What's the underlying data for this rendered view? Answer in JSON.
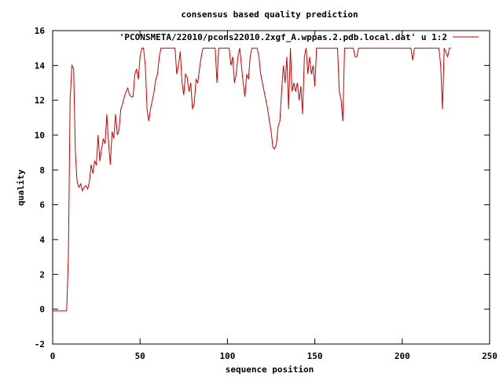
{
  "chart_data": {
    "type": "line",
    "title": "consensus based quality prediction",
    "xlabel": "sequence position",
    "ylabel": "quality",
    "xlim": [
      0,
      250
    ],
    "ylim": [
      -2,
      16
    ],
    "x_ticks": [
      0,
      50,
      100,
      150,
      200,
      250
    ],
    "y_ticks": [
      -2,
      0,
      2,
      4,
      6,
      8,
      10,
      12,
      14,
      16
    ],
    "x_tick_labels": [
      "0",
      "50",
      "100",
      "150",
      "200",
      "250"
    ],
    "y_tick_labels": [
      "-2",
      "0",
      "2",
      "4",
      "6",
      "8",
      "10",
      "12",
      "14",
      "16"
    ],
    "grid": false,
    "legend_position": "top-right",
    "line_color": "#cc0000",
    "series": [
      {
        "name": "'PCONSMETA/22010/pcons22010.2xgf_A.wppas.2.pdb.local.dat' u 1:2",
        "color": "#cc0000",
        "points": [
          [
            0,
            -0.1
          ],
          [
            8,
            -0.1
          ],
          [
            9,
            3.0
          ],
          [
            10,
            12.0
          ],
          [
            11,
            14.0
          ],
          [
            12,
            13.8
          ],
          [
            13,
            9.0
          ],
          [
            14,
            7.3
          ],
          [
            15,
            7.0
          ],
          [
            16,
            7.2
          ],
          [
            17,
            6.8
          ],
          [
            18,
            7.0
          ],
          [
            19,
            7.1
          ],
          [
            20,
            6.9
          ],
          [
            21,
            7.3
          ],
          [
            22,
            8.3
          ],
          [
            23,
            7.8
          ],
          [
            24,
            8.5
          ],
          [
            25,
            8.3
          ],
          [
            26,
            10.0
          ],
          [
            27,
            8.5
          ],
          [
            28,
            9.2
          ],
          [
            29,
            9.8
          ],
          [
            30,
            9.5
          ],
          [
            31,
            11.2
          ],
          [
            32,
            9.5
          ],
          [
            33,
            8.3
          ],
          [
            34,
            10.2
          ],
          [
            35,
            9.8
          ],
          [
            36,
            11.2
          ],
          [
            37,
            10.0
          ],
          [
            38,
            10.3
          ],
          [
            39,
            11.5
          ],
          [
            40,
            11.8
          ],
          [
            41,
            12.2
          ],
          [
            42,
            12.5
          ],
          [
            43,
            12.7
          ],
          [
            44,
            12.3
          ],
          [
            45,
            12.2
          ],
          [
            46,
            12.2
          ],
          [
            47,
            13.5
          ],
          [
            48,
            13.8
          ],
          [
            49,
            13.2
          ],
          [
            50,
            14.5
          ],
          [
            51,
            15.0
          ],
          [
            52,
            15.0
          ],
          [
            53,
            14.0
          ],
          [
            54,
            11.5
          ],
          [
            55,
            10.8
          ],
          [
            56,
            11.5
          ],
          [
            57,
            12.0
          ],
          [
            58,
            12.5
          ],
          [
            59,
            13.2
          ],
          [
            60,
            13.5
          ],
          [
            61,
            14.5
          ],
          [
            62,
            15.0
          ],
          [
            70,
            15.0
          ],
          [
            71,
            13.5
          ],
          [
            72,
            14.0
          ],
          [
            73,
            14.8
          ],
          [
            74,
            13.0
          ],
          [
            75,
            12.3
          ],
          [
            76,
            13.5
          ],
          [
            77,
            13.3
          ],
          [
            78,
            12.5
          ],
          [
            79,
            13.0
          ],
          [
            80,
            11.5
          ],
          [
            81,
            11.8
          ],
          [
            82,
            13.2
          ],
          [
            83,
            13.0
          ],
          [
            84,
            13.8
          ],
          [
            85,
            14.5
          ],
          [
            86,
            15.0
          ],
          [
            93,
            15.0
          ],
          [
            94,
            13.0
          ],
          [
            95,
            15.0
          ],
          [
            101,
            15.0
          ],
          [
            102,
            14.0
          ],
          [
            103,
            14.5
          ],
          [
            104,
            13.0
          ],
          [
            105,
            13.5
          ],
          [
            106,
            14.5
          ],
          [
            107,
            15.0
          ],
          [
            108,
            14.0
          ],
          [
            109,
            13.0
          ],
          [
            110,
            12.2
          ],
          [
            111,
            13.5
          ],
          [
            112,
            13.2
          ],
          [
            113,
            14.5
          ],
          [
            114,
            15.0
          ],
          [
            117,
            15.0
          ],
          [
            118,
            14.5
          ],
          [
            119,
            13.5
          ],
          [
            120,
            13.0
          ],
          [
            121,
            12.5
          ],
          [
            122,
            12.0
          ],
          [
            123,
            11.5
          ],
          [
            124,
            10.8
          ],
          [
            125,
            10.2
          ],
          [
            126,
            9.3
          ],
          [
            127,
            9.2
          ],
          [
            128,
            9.5
          ],
          [
            129,
            10.5
          ],
          [
            130,
            10.8
          ],
          [
            131,
            12.5
          ],
          [
            132,
            14.0
          ],
          [
            133,
            13.0
          ],
          [
            134,
            14.5
          ],
          [
            135,
            11.5
          ],
          [
            136,
            15.0
          ],
          [
            137,
            12.5
          ],
          [
            138,
            13.0
          ],
          [
            139,
            12.5
          ],
          [
            140,
            13.0
          ],
          [
            141,
            12.0
          ],
          [
            142,
            12.8
          ],
          [
            143,
            11.2
          ],
          [
            144,
            14.5
          ],
          [
            145,
            15.0
          ],
          [
            146,
            13.5
          ],
          [
            147,
            14.5
          ],
          [
            148,
            13.5
          ],
          [
            149,
            14.0
          ],
          [
            150,
            12.8
          ],
          [
            151,
            15.0
          ],
          [
            163,
            15.0
          ],
          [
            164,
            12.5
          ],
          [
            165,
            12.0
          ],
          [
            166,
            10.8
          ],
          [
            167,
            15.0
          ],
          [
            172,
            15.0
          ],
          [
            173,
            14.5
          ],
          [
            174,
            14.5
          ],
          [
            175,
            15.0
          ],
          [
            205,
            15.0
          ],
          [
            206,
            14.3
          ],
          [
            207,
            15.0
          ],
          [
            221,
            15.0
          ],
          [
            222,
            14.0
          ],
          [
            223,
            11.5
          ],
          [
            224,
            15.0
          ],
          [
            226,
            14.5
          ],
          [
            227,
            15.0
          ],
          [
            228,
            15.0
          ]
        ]
      }
    ]
  }
}
